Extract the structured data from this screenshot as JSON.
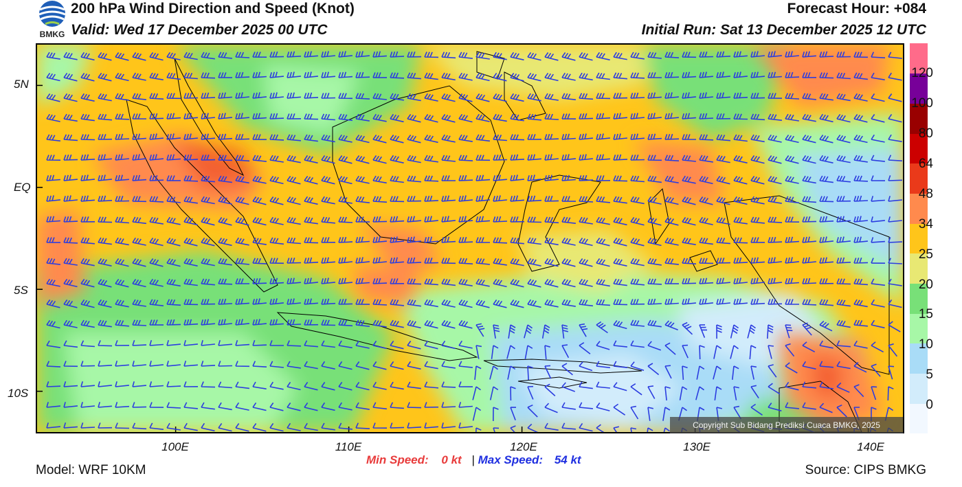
{
  "header": {
    "logo_text": "BMKG",
    "title": "200 hPa Wind Direction and Speed (Knot)",
    "valid": "Valid: Wed 17 December 2025 00 UTC",
    "forecast_hour": "Forecast Hour: +084",
    "initial_run": "Initial Run: Sat 13 December 2025 12 UTC"
  },
  "map": {
    "lon_range": [
      92,
      142
    ],
    "lat_range": [
      -12,
      7
    ],
    "y_ticks": [
      "5N",
      "EQ",
      "5S",
      "10S"
    ],
    "y_tick_lats": [
      5,
      0,
      -5,
      -10
    ],
    "x_ticks": [
      "100E",
      "110E",
      "120E",
      "130E",
      "140E"
    ],
    "x_tick_lons": [
      100,
      110,
      120,
      130,
      140
    ],
    "barb_color": "#2b3ce0",
    "coastline_color": "#000000",
    "copyright": "Copyright Sub Bidang Prediksi Cuaca BMKG, 2025"
  },
  "colorbar": {
    "labels": [
      "0",
      "5",
      "10",
      "15",
      "20",
      "25",
      "34",
      "48",
      "64",
      "80",
      "100",
      "120"
    ],
    "colors": [
      "#f2f8ff",
      "#d2ecfb",
      "#a9dcf7",
      "#a7f7a7",
      "#78e078",
      "#e8e873",
      "#ffc51a",
      "#ff8a4d",
      "#ea3a1a",
      "#cc0000",
      "#990000",
      "#770099",
      "#ff6b8a"
    ]
  },
  "stats": {
    "min_label": "Min Speed:",
    "min_value": "0 kt",
    "separator": "|",
    "max_label": "Max Speed:",
    "max_value": "54 kt"
  },
  "footer": {
    "model": "Model: WRF 10KM",
    "source": "Source: CIPS BMKG"
  }
}
